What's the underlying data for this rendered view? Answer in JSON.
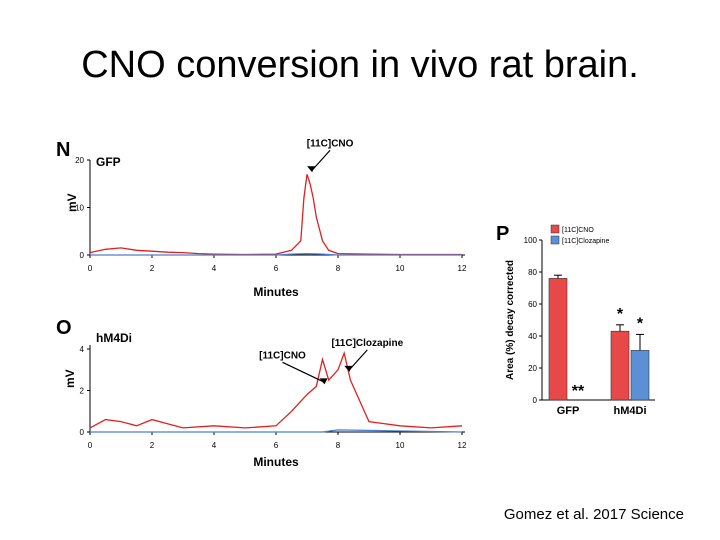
{
  "slide": {
    "title": "CNO conversion in vivo rat brain.",
    "citation": "Gomez et al. 2017 Science"
  },
  "colors": {
    "red": "#e02020",
    "blue": "#4a7fd0",
    "bar_red": "#e84848",
    "bar_blue": "#5b8fd6"
  },
  "chart_data": [
    {
      "panel": "N",
      "type": "line",
      "label": "GFP",
      "xlabel": "Minutes",
      "ylabel": "mV",
      "xlim": [
        0,
        12
      ],
      "ylim": [
        0,
        20
      ],
      "xticks": [
        "0",
        "2",
        "4",
        "6",
        "8",
        "10",
        "12"
      ],
      "yticks": [
        "0",
        "10",
        "20"
      ],
      "annotations": [
        {
          "text": "[11C]CNO",
          "x": 7.1,
          "y": 17
        }
      ],
      "series": [
        {
          "color": "red",
          "x": [
            0,
            0.5,
            1,
            1.5,
            2,
            2.5,
            3,
            3.5,
            4,
            5,
            6,
            6.5,
            6.8,
            6.9,
            7.0,
            7.1,
            7.2,
            7.3,
            7.5,
            7.7,
            8,
            9,
            10,
            11,
            12
          ],
          "y": [
            0.5,
            1.2,
            1.5,
            1.0,
            0.8,
            0.6,
            0.5,
            0.3,
            0.2,
            0.1,
            0.2,
            1.0,
            3.0,
            12,
            17,
            15,
            12,
            8,
            3,
            1.0,
            0.3,
            0.2,
            0.1,
            0.1,
            0.1
          ]
        },
        {
          "color": "blue",
          "x": [
            0,
            3,
            6,
            6.5,
            7,
            7.5,
            8,
            12
          ],
          "y": [
            0,
            0,
            0,
            0.2,
            0.3,
            0.2,
            0,
            0
          ]
        }
      ]
    },
    {
      "panel": "O",
      "type": "line",
      "label": "hM4Di",
      "xlabel": "Minutes",
      "ylabel": "mV",
      "xlim": [
        0,
        12
      ],
      "ylim": [
        0,
        4
      ],
      "xticks": [
        "0",
        "2",
        "4",
        "6",
        "8",
        "10",
        "12"
      ],
      "yticks": [
        "0",
        "2",
        "4"
      ],
      "annotations": [
        {
          "text": "[11C]CNO",
          "x": 7.5,
          "y": 2.2
        },
        {
          "text": "[11C]Clozapine",
          "x": 8.3,
          "y": 2.8
        }
      ],
      "series": [
        {
          "color": "red",
          "x": [
            0,
            0.5,
            1,
            1.5,
            2,
            2.5,
            3,
            4,
            5,
            6,
            6.5,
            7,
            7.3,
            7.5,
            7.7,
            8,
            8.2,
            8.4,
            8.7,
            9,
            10,
            11,
            12
          ],
          "y": [
            0.2,
            0.6,
            0.5,
            0.3,
            0.6,
            0.4,
            0.2,
            0.3,
            0.2,
            0.3,
            1.0,
            1.8,
            2.2,
            3.5,
            2.5,
            3.0,
            3.8,
            2.5,
            1.5,
            0.5,
            0.3,
            0.2,
            0.3
          ]
        },
        {
          "color": "blue",
          "x": [
            0,
            7.5,
            8,
            12
          ],
          "y": [
            0,
            0,
            0.1,
            0
          ]
        }
      ]
    },
    {
      "panel": "P",
      "type": "bar",
      "ylabel": "Area (%) decay corrected",
      "ylim": [
        0,
        100
      ],
      "yticks": [
        "0",
        "20",
        "40",
        "60",
        "80",
        "100"
      ],
      "categories": [
        "GFP",
        "hM4Di"
      ],
      "legend": [
        "[11C]CNO",
        "[11C]Clozapine"
      ],
      "series": [
        {
          "name": "[11C]CNO",
          "color": "bar_red",
          "values": [
            76,
            43
          ],
          "errors": [
            2,
            4
          ]
        },
        {
          "name": "[11C]Clozapine",
          "color": "bar_blue",
          "values": [
            0,
            31
          ],
          "errors": [
            0,
            10
          ]
        }
      ],
      "significance": [
        {
          "category": "GFP",
          "series": "[11C]Clozapine",
          "text": "**"
        },
        {
          "category": "hM4Di",
          "series": "[11C]CNO",
          "text": "*"
        },
        {
          "category": "hM4Di",
          "series": "[11C]Clozapine",
          "text": "*"
        }
      ]
    }
  ]
}
